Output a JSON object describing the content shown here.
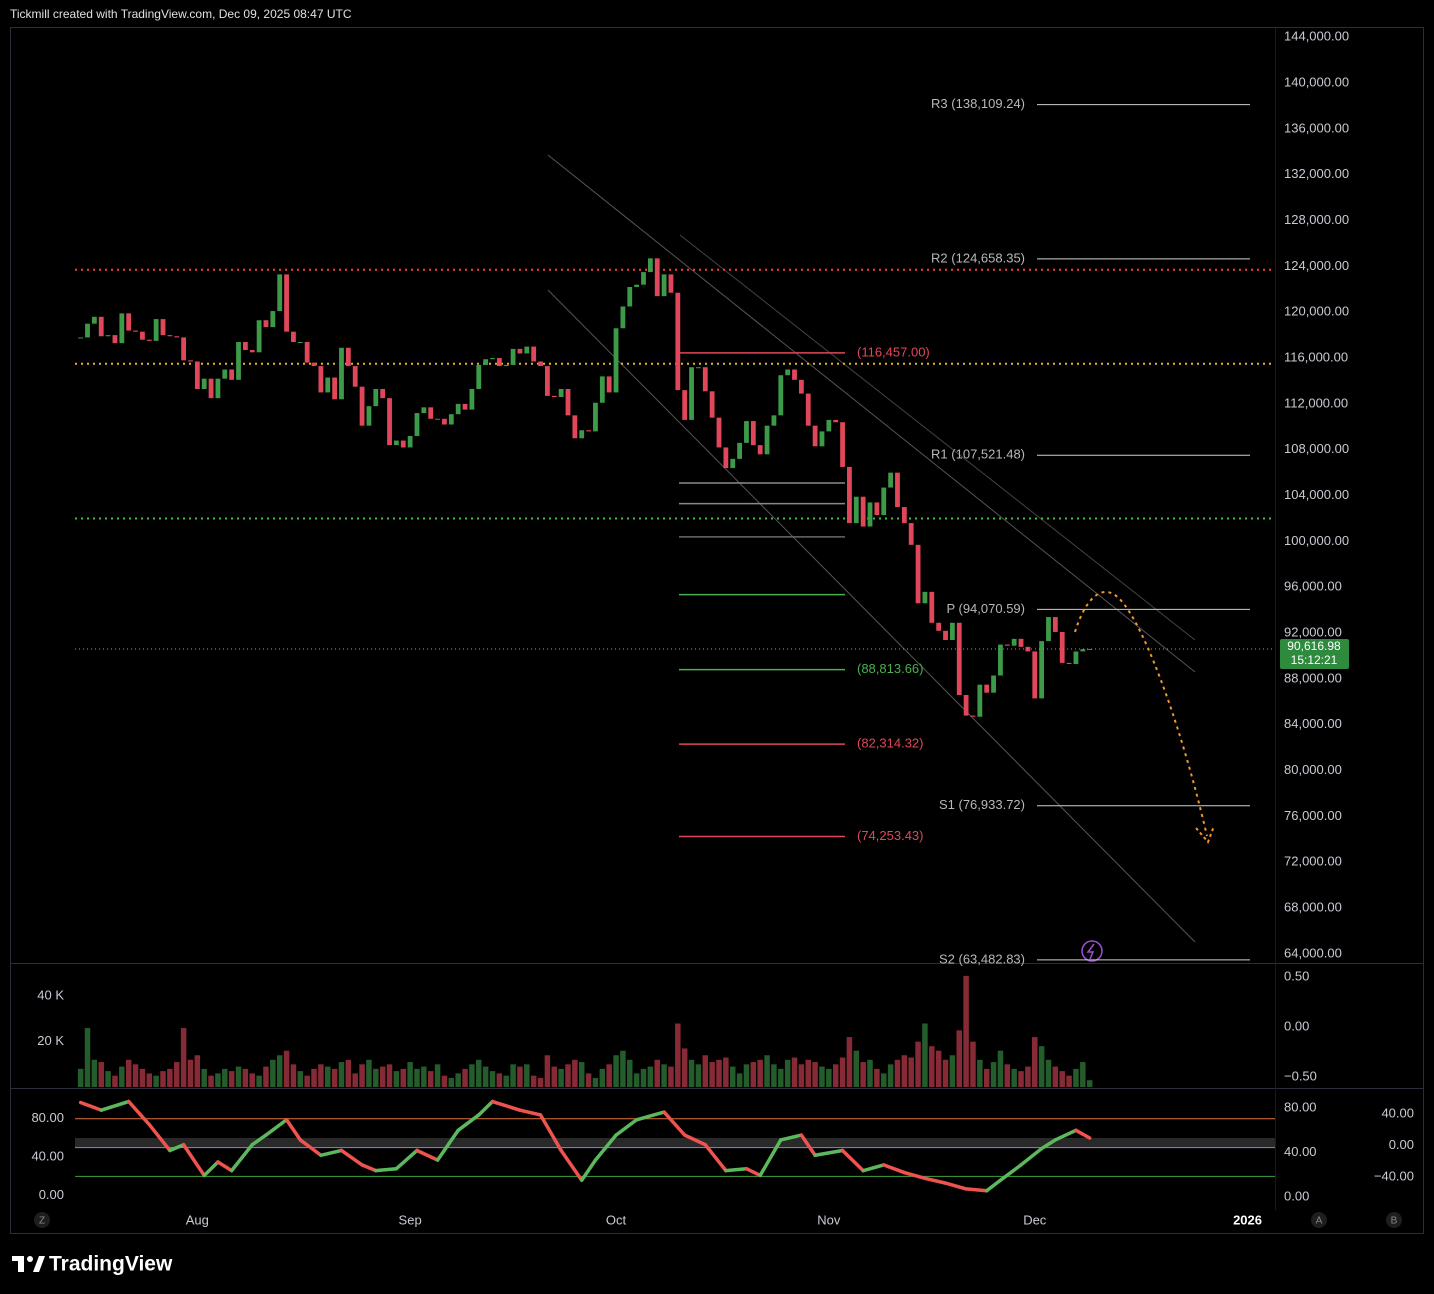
{
  "header": "Tickmill created with TradingView.com, Dec 09, 2025 08:47 UTC",
  "brand": "TradingView",
  "corner_labels": [
    "Z",
    "A",
    "B"
  ],
  "chart_data": {
    "type": "candlestick",
    "up_color": "#3c9a48",
    "down_color": "#e0475a",
    "xlim": [
      -27,
      157
    ],
    "xticks": [
      {
        "value": 0,
        "label": "Aug"
      },
      {
        "value": 31,
        "label": "Sep"
      },
      {
        "value": 61,
        "label": "Oct"
      },
      {
        "value": 92,
        "label": "Nov"
      },
      {
        "value": 122,
        "label": "Dec"
      },
      {
        "value": 153,
        "label": "2026"
      }
    ],
    "ylim": [
      63300,
      144800
    ],
    "yticks": [
      {
        "value": 64000,
        "label": "64,000.00"
      },
      {
        "value": 68000,
        "label": "68,000.00"
      },
      {
        "value": 72000,
        "label": "72,000.00"
      },
      {
        "value": 76000,
        "label": "76,000.00"
      },
      {
        "value": 80000,
        "label": "80,000.00"
      },
      {
        "value": 84000,
        "label": "84,000.00"
      },
      {
        "value": 88000,
        "label": "88,000.00"
      },
      {
        "value": 92000,
        "label": "92,000.00"
      },
      {
        "value": 96000,
        "label": "96,000.00"
      },
      {
        "value": 100000,
        "label": "100,000.00"
      },
      {
        "value": 104000,
        "label": "104,000.00"
      },
      {
        "value": 108000,
        "label": "108,000.00"
      },
      {
        "value": 112000,
        "label": "112,000.00"
      },
      {
        "value": 116000,
        "label": "116,000.00"
      },
      {
        "value": 120000,
        "label": "120,000.00"
      },
      {
        "value": 124000,
        "label": "124,000.00"
      },
      {
        "value": 128000,
        "label": "128,000.00"
      },
      {
        "value": 132000,
        "label": "132,000.00"
      },
      {
        "value": 136000,
        "label": "136,000.00"
      },
      {
        "value": 140000,
        "label": "140,000.00"
      },
      {
        "value": 144000,
        "label": "144,000.00"
      }
    ],
    "x": [
      -17,
      -16,
      -15,
      -14,
      -13,
      -12,
      -11,
      -10,
      -9,
      -8,
      -7,
      -6,
      -5,
      -4,
      -3,
      -2,
      -1,
      0,
      1,
      2,
      3,
      4,
      5,
      6,
      7,
      8,
      9,
      10,
      11,
      12,
      13,
      14,
      15,
      16,
      17,
      18,
      19,
      20,
      21,
      22,
      23,
      24,
      25,
      26,
      27,
      28,
      29,
      30,
      31,
      32,
      33,
      34,
      35,
      36,
      37,
      38,
      39,
      40,
      41,
      42,
      43,
      44,
      45,
      46,
      47,
      48,
      49,
      50,
      51,
      52,
      53,
      54,
      55,
      56,
      57,
      58,
      59,
      60,
      61,
      62,
      63,
      64,
      65,
      66,
      67,
      68,
      69,
      70,
      71,
      72,
      73,
      74,
      75,
      76,
      77,
      78,
      79,
      80,
      81,
      82,
      83,
      84,
      85,
      86,
      87,
      88,
      89,
      90,
      91,
      92,
      93,
      94,
      95,
      96,
      97,
      98,
      99,
      100,
      101,
      102,
      103,
      104,
      105,
      106,
      107,
      108,
      109,
      110,
      111,
      112,
      113,
      114,
      115,
      116,
      117,
      118,
      119,
      120,
      121,
      122,
      123,
      124,
      125,
      126,
      127,
      128,
      129,
      130
    ],
    "close": [
      117800,
      119000,
      119600,
      117900,
      118000,
      117300,
      119900,
      118400,
      118300,
      117600,
      117500,
      119400,
      118000,
      117900,
      117800,
      115800,
      115700,
      113300,
      114200,
      112500,
      114200,
      115000,
      114100,
      117400,
      116700,
      116500,
      119300,
      118700,
      120100,
      123300,
      118300,
      117400,
      117400,
      115600,
      115300,
      113000,
      114300,
      112400,
      116900,
      115300,
      113500,
      110100,
      111800,
      113300,
      112500,
      108400,
      108800,
      108200,
      109200,
      111200,
      111700,
      110700,
      110700,
      110200,
      111100,
      112000,
      111500,
      113300,
      115400,
      115900,
      116000,
      115300,
      115400,
      116800,
      116400,
      117000,
      115700,
      115300,
      112700,
      112600,
      113300,
      111000,
      109000,
      109700,
      109600,
      112100,
      114400,
      113000,
      118600,
      120500,
      122200,
      122400,
      123500,
      124700,
      121400,
      123300,
      121700,
      113200,
      110600,
      115200,
      115200,
      113100,
      110800,
      108200,
      106400,
      107200,
      108600,
      110500,
      108400,
      107600,
      110100,
      111000,
      114500,
      115000,
      114100,
      112900,
      110100,
      108300,
      109600,
      110600,
      110400,
      106500,
      101600,
      103900,
      101300,
      103400,
      102300,
      104700,
      106000,
      103000,
      101600,
      99700,
      94600,
      95600,
      92900,
      92200,
      91400,
      92900,
      86600,
      84800,
      84700,
      87500,
      86800,
      88300,
      91000,
      90900,
      91500,
      90800,
      90400,
      86300,
      91300,
      93400,
      92100,
      89400,
      89300,
      90400,
      90600,
      90616.98
    ],
    "last_price": {
      "value": 90616.98,
      "label": "90,616.98",
      "countdown": "15:12:21",
      "color": "#2e8b3e"
    },
    "pivots": [
      {
        "value": 138109.24,
        "label": "R3 (138,109.24)"
      },
      {
        "value": 124658.35,
        "label": "R2 (124,658.35)"
      },
      {
        "value": 107521.48,
        "label": "R1 (107,521.48)"
      },
      {
        "value": 94070.59,
        "label": "P (94,070.59)"
      },
      {
        "value": 76933.72,
        "label": "S1 (76,933.72)"
      },
      {
        "value": 63482.83,
        "label": "S2 (63,482.83)"
      }
    ],
    "fib_levels": [
      {
        "value": 116457.0,
        "label": "(116,457.00)",
        "color": "#e0475a"
      },
      {
        "value": 88813.66,
        "label": "(88,813.66)",
        "color": "#4caf50"
      },
      {
        "value": 82314.32,
        "label": "(82,314.32)",
        "color": "#e0475a"
      },
      {
        "value": 74253.43,
        "label": "(74,253.43)",
        "color": "#e0475a"
      }
    ],
    "fib_lines": [
      {
        "value": 105100,
        "color": "#8a8a8a"
      },
      {
        "value": 103300,
        "color": "#8a8a8a"
      },
      {
        "value": 100400,
        "color": "#6a6a6a"
      },
      {
        "value": 95355,
        "color": "#4caf50"
      }
    ],
    "dotted_levels": [
      {
        "value": 123700,
        "color": "#ff3b3b"
      },
      {
        "value": 115500,
        "color": "#e6b422"
      },
      {
        "value": 102000,
        "color": "#3fbf3f"
      }
    ],
    "volume": {
      "type": "bar",
      "ylim": [
        0,
        53800
      ],
      "yticks": [
        {
          "value": 40000,
          "label": "40 K"
        },
        {
          "value": 20000,
          "label": "20 K"
        }
      ],
      "y2lim": [
        -0.6,
        0.62
      ],
      "y2ticks": [
        {
          "value": 0.5,
          "label": "0.50"
        },
        {
          "value": 0,
          "label": "0.00"
        },
        {
          "value": -0.5,
          "label": "−0.50"
        }
      ],
      "values": [
        8000,
        26000,
        12000,
        11000,
        7000,
        5000,
        9000,
        12000,
        10000,
        8000,
        6000,
        5000,
        7000,
        8000,
        11000,
        26000,
        12000,
        14000,
        8000,
        5000,
        6000,
        8000,
        7000,
        9000,
        8000,
        6000,
        5000,
        9000,
        12000,
        14000,
        16000,
        10000,
        7000,
        5000,
        8000,
        10000,
        9000,
        8000,
        11000,
        12000,
        6000,
        10000,
        12000,
        8000,
        9000,
        10000,
        7000,
        8000,
        11000,
        8000,
        9000,
        7000,
        10000,
        5000,
        4000,
        6000,
        8000,
        10000,
        12000,
        9000,
        7000,
        6000,
        5000,
        10000,
        9000,
        10000,
        5000,
        4000,
        14000,
        9000,
        8000,
        10000,
        12000,
        11000,
        6000,
        4000,
        8000,
        10000,
        14000,
        16000,
        12000,
        6000,
        8000,
        9000,
        12000,
        10000,
        9000,
        28000,
        17000,
        12000,
        10000,
        14000,
        11000,
        12000,
        13000,
        9000,
        6000,
        10000,
        11000,
        12000,
        14000,
        10000,
        8000,
        12000,
        13000,
        10000,
        12000,
        11000,
        9000,
        8000,
        10000,
        13000,
        22000,
        16000,
        11000,
        12000,
        8000,
        6000,
        10000,
        12000,
        14000,
        13000,
        20000,
        28000,
        18000,
        16000,
        12000,
        14000,
        25000,
        49000,
        20000,
        12000,
        8000,
        11000,
        16000,
        10000,
        8000,
        7000,
        9000,
        22000,
        18000,
        12000,
        9000,
        7000,
        5000,
        8000,
        11000,
        3000
      ]
    },
    "oscillator": {
      "type": "line",
      "up_color": "#5cb85c",
      "down_color": "#ef5350",
      "ylim": [
        -15,
        110
      ],
      "yticks": [
        {
          "value": 80,
          "label": "80.00"
        },
        {
          "value": 40,
          "label": "40.00"
        },
        {
          "value": 0,
          "label": "0.00"
        }
      ],
      "y2lim": [
        -11.7,
        96.2
      ],
      "y2ticks": [
        {
          "value": 80,
          "label": "80.00"
        },
        {
          "value": 40,
          "label": "40.00"
        },
        {
          "value": 0,
          "label": "0.00"
        }
      ],
      "y3lim": [
        -81.9,
        70.5
      ],
      "y3ticks": [
        {
          "value": 40,
          "label": "40.00"
        },
        {
          "value": 0,
          "label": "0.00"
        },
        {
          "value": -40,
          "label": "−40.00"
        }
      ],
      "levels": [
        {
          "value": 80,
          "color": "#e0703a"
        },
        {
          "value": 50,
          "color": "#9b7bd6"
        },
        {
          "value": 20,
          "color": "#3fa33f"
        }
      ],
      "x": [
        -17,
        -14,
        -10,
        -7,
        -4,
        -2,
        1,
        3,
        5,
        8,
        10,
        13,
        15,
        18,
        21,
        24,
        26,
        29,
        32,
        35,
        38,
        41,
        43,
        47,
        50,
        53,
        56,
        58,
        61,
        64,
        68,
        71,
        74,
        77,
        80,
        82,
        85,
        88,
        90,
        94,
        97,
        100,
        103,
        106,
        109,
        112,
        115,
        117,
        120,
        123,
        125,
        128,
        130
      ],
      "values": [
        97,
        89,
        98,
        74,
        47,
        53,
        21,
        35,
        26,
        53,
        63,
        79,
        58,
        42,
        47,
        32,
        26,
        28,
        47,
        37,
        68,
        84,
        98,
        89,
        84,
        47,
        16,
        37,
        63,
        79,
        87,
        63,
        53,
        26,
        28,
        21,
        58,
        63,
        42,
        47,
        26,
        32,
        24,
        18,
        13,
        7,
        5,
        16,
        32,
        49,
        58,
        68,
        60
      ]
    }
  }
}
